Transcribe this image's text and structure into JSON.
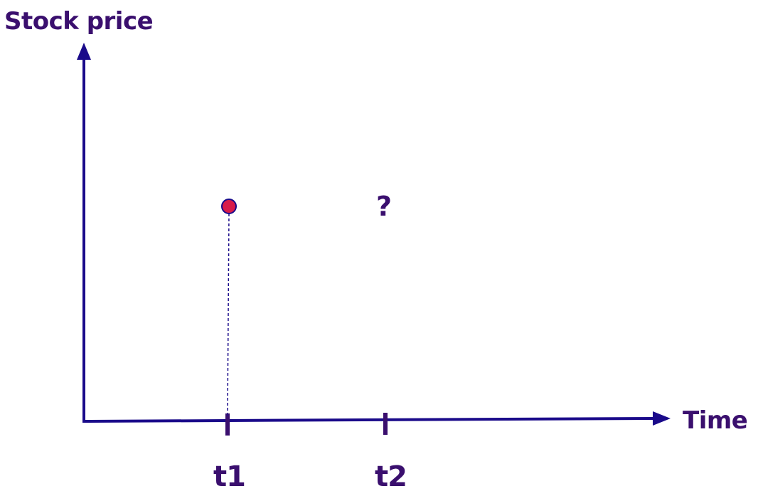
{
  "axes": {
    "y_label": "Stock price",
    "x_label": "Time"
  },
  "ticks": [
    {
      "label": "t1"
    },
    {
      "label": "t2"
    }
  ],
  "unknown_marker": "?",
  "colors": {
    "axis": "#1a0a8a",
    "text": "#3a0f6e",
    "point_fill": "#d81b4a",
    "point_stroke": "#1a0a8a"
  }
}
